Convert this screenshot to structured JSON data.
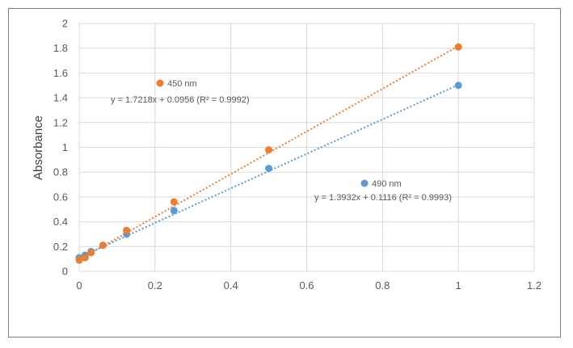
{
  "chart_data": {
    "type": "scatter",
    "title": "",
    "xlabel": "",
    "ylabel": "Absorbance",
    "xlim": [
      0,
      1.2
    ],
    "ylim": [
      0,
      2
    ],
    "x_ticks": [
      "0",
      "0.2",
      "0.4",
      "0.6",
      "0.8",
      "1",
      "1.2"
    ],
    "y_ticks": [
      "0",
      "0.2",
      "0.4",
      "0.6",
      "0.8",
      "1",
      "1.2",
      "1.4",
      "1.6",
      "1.8",
      "2"
    ],
    "grid": true,
    "series": [
      {
        "name": "450 nm",
        "color": "#ED7D31",
        "x": [
          0,
          0.0156,
          0.03125,
          0.0625,
          0.125,
          0.25,
          0.5,
          1
        ],
        "y": [
          0.09,
          0.11,
          0.15,
          0.21,
          0.33,
          0.56,
          0.98,
          1.81
        ],
        "trendline": {
          "slope": 1.7218,
          "intercept": 0.0956,
          "equation": "y = 1.7218x + 0.0956 (R² = 0.9992)"
        }
      },
      {
        "name": "490 nm",
        "color": "#5B9BD5",
        "x": [
          0,
          0.0156,
          0.03125,
          0.0625,
          0.125,
          0.25,
          0.5,
          1
        ],
        "y": [
          0.11,
          0.13,
          0.16,
          0.21,
          0.3,
          0.49,
          0.83,
          1.5
        ],
        "trendline": {
          "slope": 1.3932,
          "intercept": 0.1116,
          "equation": "y = 1.3932x + 0.1116 (R² = 0.9993)"
        }
      }
    ]
  }
}
